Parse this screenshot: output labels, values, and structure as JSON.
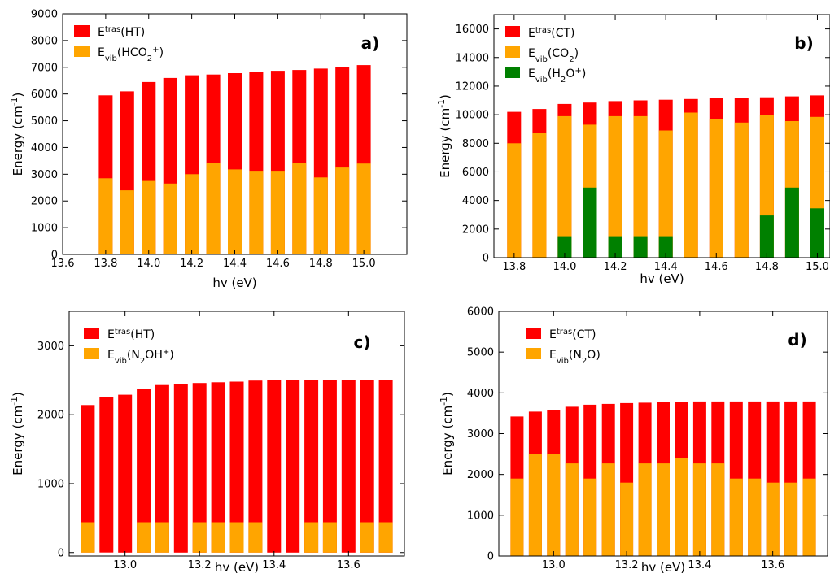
{
  "colors": {
    "ext": "#ff0000",
    "vib": "#ffa500",
    "vib2": "#008000"
  },
  "chart_data": [
    {
      "type": "bar",
      "panel_label": "a)",
      "xlabel": "hv (eV)",
      "ylabel": "Energy (cm-1)",
      "xlim": [
        13.6,
        15.2
      ],
      "ylim": [
        0,
        9000
      ],
      "xticks": [
        "13.6",
        "13.8",
        "14.0",
        "14.2",
        "14.4",
        "14.6",
        "14.8",
        "15.0"
      ],
      "yticks": [
        "0",
        "1000",
        "2000",
        "3000",
        "4000",
        "5000",
        "6000",
        "7000",
        "8000",
        "9000"
      ],
      "legend": [
        {
          "base": "E",
          "sup": "tras",
          "sub": "",
          "rest": "(HT)",
          "color": "ext"
        },
        {
          "base": "E",
          "sup": "",
          "sub": "vib",
          "rest": "(HCO2+)",
          "color": "vib"
        }
      ],
      "x": [
        13.8,
        13.9,
        14.0,
        14.1,
        14.2,
        14.3,
        14.4,
        14.5,
        14.6,
        14.7,
        14.8,
        14.9,
        15.0
      ],
      "series": [
        {
          "name": "E tras (HT)",
          "color": "ext",
          "values": [
            5950,
            6100,
            6450,
            6600,
            6700,
            6730,
            6780,
            6820,
            6870,
            6900,
            6950,
            7000,
            7080
          ]
        },
        {
          "name": "E vib (HCO2+)",
          "color": "vib",
          "values": [
            2850,
            2400,
            2750,
            2650,
            3000,
            3420,
            3180,
            3130,
            3130,
            3420,
            2880,
            3250,
            3400
          ]
        }
      ],
      "grid": false,
      "legend_position": "top-left"
    },
    {
      "type": "bar",
      "panel_label": "b)",
      "xlabel": "hv (eV)",
      "ylabel": "Energy (cm-1)",
      "xlim": [
        13.72,
        15.05
      ],
      "ylim": [
        0,
        17000
      ],
      "xticks": [
        "13.8",
        "14.0",
        "14.2",
        "14.4",
        "14.6",
        "14.8",
        "15.0"
      ],
      "yticks": [
        "0",
        "2000",
        "4000",
        "6000",
        "8000",
        "10000",
        "12000",
        "14000",
        "16000"
      ],
      "legend": [
        {
          "base": "E",
          "sup": "tras",
          "sub": "",
          "rest": "(CT)",
          "color": "ext"
        },
        {
          "base": "E",
          "sup": "",
          "sub": "vib",
          "rest": "(CO2)",
          "color": "vib"
        },
        {
          "base": "E",
          "sup": "",
          "sub": "vib",
          "rest": "(H2O+)",
          "color": "vib2"
        }
      ],
      "x": [
        13.8,
        13.9,
        14.0,
        14.1,
        14.2,
        14.3,
        14.4,
        14.5,
        14.6,
        14.7,
        14.8,
        14.9,
        15.0
      ],
      "series": [
        {
          "name": "E tras (CT)",
          "color": "ext",
          "values": [
            10200,
            10400,
            10750,
            10850,
            10950,
            11000,
            11050,
            11100,
            11150,
            11180,
            11220,
            11280,
            11350
          ]
        },
        {
          "name": "E vib (CO2)",
          "color": "vib",
          "values": [
            8000,
            8700,
            9900,
            9300,
            9900,
            9900,
            8900,
            10150,
            9700,
            9450,
            10000,
            9550,
            9850
          ]
        },
        {
          "name": "E vib (H2O+)",
          "color": "vib2",
          "values": [
            0,
            0,
            1500,
            4900,
            1500,
            1500,
            1500,
            0,
            0,
            0,
            2950,
            4900,
            3450
          ]
        }
      ],
      "grid": false,
      "legend_position": "top-left"
    },
    {
      "type": "bar",
      "panel_label": "c)",
      "xlabel": "hv (eV)",
      "ylabel": "Energy (cm-1)",
      "xlim": [
        12.85,
        13.75
      ],
      "ylim": [
        -50,
        3500
      ],
      "xticks": [
        "13.0",
        "13.2",
        "13.4",
        "13.6"
      ],
      "yticks": [
        "0",
        "1000",
        "2000",
        "3000"
      ],
      "legend": [
        {
          "base": "E",
          "sup": "tras",
          "sub": "",
          "rest": "(HT)",
          "color": "ext"
        },
        {
          "base": "E",
          "sup": "",
          "sub": "vib",
          "rest": "(N2OH+)",
          "color": "vib"
        }
      ],
      "x": [
        12.9,
        12.95,
        13.0,
        13.05,
        13.1,
        13.15,
        13.2,
        13.25,
        13.3,
        13.35,
        13.4,
        13.45,
        13.5,
        13.55,
        13.6,
        13.65,
        13.7
      ],
      "series": [
        {
          "name": "E tras (HT)",
          "color": "ext",
          "values": [
            2140,
            2260,
            2290,
            2380,
            2430,
            2440,
            2460,
            2470,
            2480,
            2495,
            2500,
            2500,
            2500,
            2500,
            2500,
            2500,
            2500
          ]
        },
        {
          "name": "E vib (N2OH+)",
          "color": "vib",
          "values": [
            440,
            0,
            0,
            440,
            440,
            0,
            440,
            440,
            440,
            440,
            0,
            0,
            440,
            440,
            0,
            440,
            440
          ]
        }
      ],
      "grid": false,
      "legend_position": "top-left"
    },
    {
      "type": "bar",
      "panel_label": "d)",
      "xlabel": "hv (eV)",
      "ylabel": "Energy (cm-1)",
      "xlim": [
        12.85,
        13.75
      ],
      "ylim": [
        0,
        6000
      ],
      "xticks": [
        "13.0",
        "13.2",
        "13.4",
        "13.6"
      ],
      "yticks": [
        "0",
        "1000",
        "2000",
        "3000",
        "4000",
        "5000",
        "6000"
      ],
      "legend": [
        {
          "base": "E",
          "sup": "tras",
          "sub": "",
          "rest": "(CT)",
          "color": "ext"
        },
        {
          "base": "E",
          "sup": "",
          "sub": "vib",
          "rest": "(N2O)",
          "color": "vib"
        }
      ],
      "x": [
        12.9,
        12.95,
        13.0,
        13.05,
        13.1,
        13.15,
        13.2,
        13.25,
        13.3,
        13.35,
        13.4,
        13.45,
        13.5,
        13.55,
        13.6,
        13.65,
        13.7
      ],
      "series": [
        {
          "name": "E tras (CT)",
          "color": "ext",
          "values": [
            3420,
            3540,
            3570,
            3660,
            3710,
            3730,
            3750,
            3760,
            3770,
            3780,
            3790,
            3790,
            3790,
            3790,
            3790,
            3790,
            3790
          ]
        },
        {
          "name": "E vib (N2O)",
          "color": "vib",
          "values": [
            1900,
            2500,
            2500,
            2270,
            1900,
            2270,
            1800,
            2270,
            2270,
            2400,
            2270,
            2270,
            1900,
            1900,
            1800,
            1800,
            1900
          ]
        }
      ],
      "grid": false,
      "legend_position": "top-left"
    }
  ]
}
